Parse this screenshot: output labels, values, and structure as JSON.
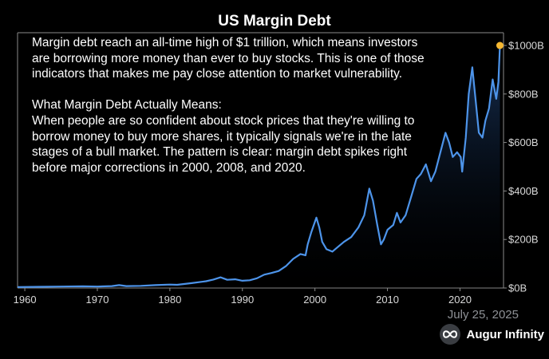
{
  "chart_data": {
    "type": "area",
    "title": "US Margin Debt",
    "xlabel": "",
    "ylabel": "",
    "xlim": [
      1959,
      2026
    ],
    "ylim": [
      0,
      1000
    ],
    "x_ticks": [
      "1960",
      "1970",
      "1980",
      "1990",
      "2000",
      "2010",
      "2020"
    ],
    "y_ticks": [
      "$0B",
      "$200B",
      "$400B",
      "$600B",
      "$800B",
      "$1000B"
    ],
    "y_axis_side": "right",
    "grid": false,
    "legend": "none",
    "colors": {
      "line": "#4d94ea",
      "area_top": "#1b3a66",
      "area_bottom": "#000000",
      "highlight_point": "#f5b731",
      "axis": "#8a8a8a"
    },
    "highlight": {
      "x": 2025.5,
      "y": 1000
    },
    "series": [
      {
        "values": [
          [
            1959,
            4
          ],
          [
            1962,
            5
          ],
          [
            1965,
            6
          ],
          [
            1968,
            7
          ],
          [
            1970,
            6
          ],
          [
            1972,
            8
          ],
          [
            1973,
            12
          ],
          [
            1974,
            8
          ],
          [
            1976,
            9
          ],
          [
            1978,
            12
          ],
          [
            1980,
            14
          ],
          [
            1981,
            13
          ],
          [
            1983,
            20
          ],
          [
            1985,
            28
          ],
          [
            1986,
            35
          ],
          [
            1987,
            44
          ],
          [
            1987.9,
            34
          ],
          [
            1989,
            36
          ],
          [
            1990,
            30
          ],
          [
            1991,
            32
          ],
          [
            1992,
            40
          ],
          [
            1993,
            55
          ],
          [
            1994,
            62
          ],
          [
            1995,
            70
          ],
          [
            1996,
            90
          ],
          [
            1997,
            120
          ],
          [
            1998,
            140
          ],
          [
            1998.7,
            135
          ],
          [
            1999,
            180
          ],
          [
            1999.5,
            230
          ],
          [
            2000.2,
            290
          ],
          [
            2000.6,
            250
          ],
          [
            2001,
            190
          ],
          [
            2001.6,
            160
          ],
          [
            2002.4,
            150
          ],
          [
            2003,
            165
          ],
          [
            2004,
            190
          ],
          [
            2005,
            210
          ],
          [
            2006,
            250
          ],
          [
            2006.8,
            300
          ],
          [
            2007.5,
            410
          ],
          [
            2008,
            360
          ],
          [
            2008.6,
            260
          ],
          [
            2009.1,
            180
          ],
          [
            2009.5,
            200
          ],
          [
            2010,
            240
          ],
          [
            2010.8,
            260
          ],
          [
            2011.3,
            310
          ],
          [
            2011.8,
            270
          ],
          [
            2012.5,
            300
          ],
          [
            2013.3,
            380
          ],
          [
            2014,
            450
          ],
          [
            2014.6,
            470
          ],
          [
            2015.3,
            510
          ],
          [
            2016,
            440
          ],
          [
            2016.6,
            480
          ],
          [
            2017.3,
            560
          ],
          [
            2018,
            640
          ],
          [
            2018.5,
            600
          ],
          [
            2019,
            540
          ],
          [
            2019.6,
            560
          ],
          [
            2020.1,
            540
          ],
          [
            2020.3,
            480
          ],
          [
            2020.8,
            620
          ],
          [
            2021.2,
            800
          ],
          [
            2021.7,
            910
          ],
          [
            2022.2,
            760
          ],
          [
            2022.6,
            640
          ],
          [
            2023.1,
            620
          ],
          [
            2023.5,
            690
          ],
          [
            2024,
            740
          ],
          [
            2024.5,
            860
          ],
          [
            2025,
            780
          ],
          [
            2025.3,
            850
          ],
          [
            2025.5,
            1000
          ]
        ]
      }
    ]
  },
  "annotation": {
    "paragraph1": " Margin debt reach an all-time high of $1 trillion, which means investors are borrowing more money than ever to buy stocks. This is one of those indicators that makes me pay close attention to market vulnerability.",
    "heading": "What Margin Debt Actually Means:",
    "paragraph2": "When people are so confident about stock prices that they're willing to borrow money to buy more shares, it typically signals we're in the late stages of a bull market. The pattern is clear: margin debt spikes right before major corrections in 2000, 2008, and 2020."
  },
  "footer": {
    "date": "July 25, 2025",
    "brand": "Augur Infinity",
    "brand_icon": "infinity-icon"
  }
}
